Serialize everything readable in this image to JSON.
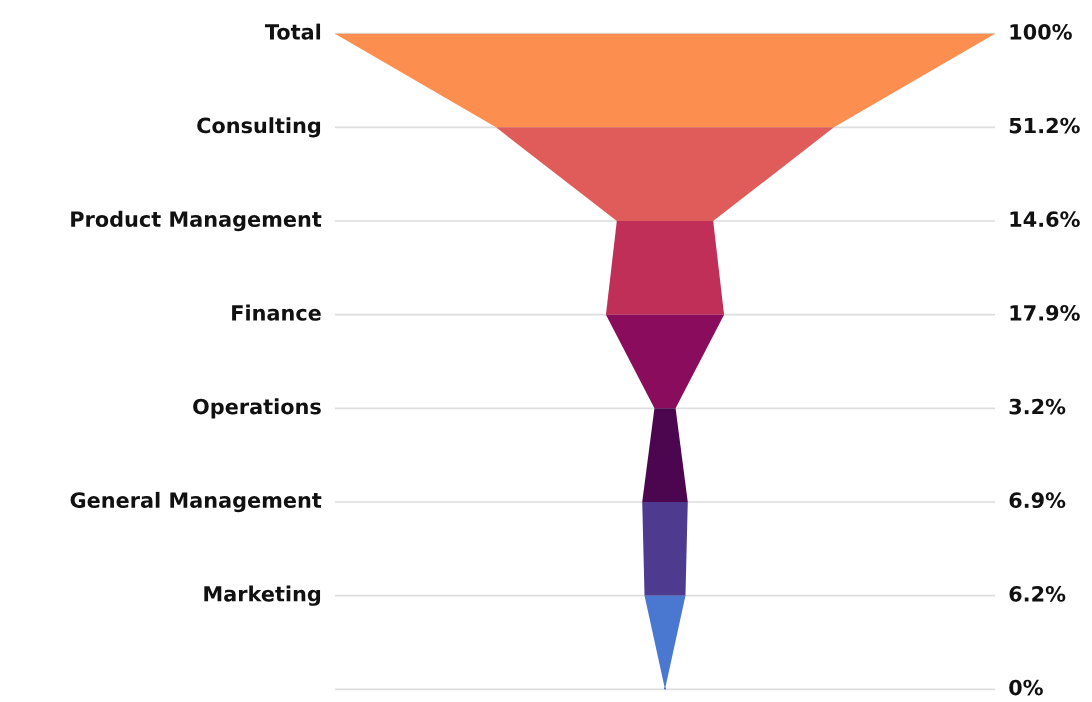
{
  "chart_data": {
    "type": "other",
    "categories": [
      "Total",
      "Consulting",
      "Product Management",
      "Finance",
      "Operations",
      "General Management",
      "Marketing",
      null
    ],
    "values": [
      100,
      51.2,
      14.6,
      17.9,
      3.2,
      6.9,
      6.2,
      0
    ],
    "value_labels": [
      "100%",
      "51.2%",
      "14.6%",
      "17.9%",
      "3.2%",
      "6.9%",
      "6.2%",
      "0%"
    ],
    "colors": [
      "#fc8f50",
      "#e05c5a",
      "#bf2f58",
      "#8a0c5c",
      "#4c0650",
      "#4e3b8f",
      "#4a77d0",
      "#4a77d0"
    ]
  }
}
